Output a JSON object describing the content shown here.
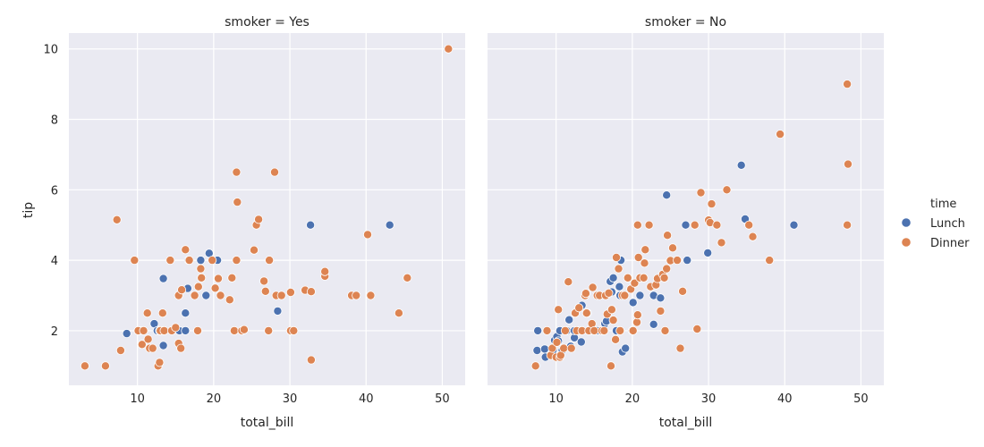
{
  "chart_data": {
    "type": "scatter",
    "xlabel": "total_bill",
    "ylabel": "tip",
    "xlim": [
      1,
      53
    ],
    "ylim": [
      0.45,
      10.45
    ],
    "xticks": [
      10,
      20,
      30,
      40,
      50
    ],
    "yticks": [
      2,
      4,
      6,
      8,
      10
    ],
    "grid": true,
    "legend": {
      "title": "time",
      "placement": "right",
      "entries": [
        {
          "name": "Lunch",
          "color": "#4c72b0"
        },
        {
          "name": "Dinner",
          "color": "#dd8452"
        }
      ]
    },
    "panels": [
      {
        "title": "smoker = Yes",
        "series": [
          {
            "name": "Lunch",
            "points": [
              [
                8.6,
                1.92
              ],
              [
                10.1,
                2.0
              ],
              [
                10.3,
                2.0
              ],
              [
                12.2,
                2.2
              ],
              [
                12.6,
                2.0
              ],
              [
                12.9,
                2.0
              ],
              [
                13.4,
                2.0
              ],
              [
                13.4,
                3.48
              ],
              [
                13.4,
                1.58
              ],
              [
                15.5,
                2.0
              ],
              [
                16.3,
                2.0
              ],
              [
                16.3,
                2.5
              ],
              [
                16.6,
                3.2
              ],
              [
                16.7,
                4.0
              ],
              [
                18.3,
                4.0
              ],
              [
                19.0,
                3.0
              ],
              [
                19.4,
                4.2
              ],
              [
                20.5,
                4.0
              ],
              [
                28.4,
                2.56
              ],
              [
                32.7,
                5.0
              ],
              [
                43.1,
                5.0
              ]
            ]
          },
          {
            "name": "Dinner",
            "points": [
              [
                3.1,
                1.0
              ],
              [
                5.8,
                1.0
              ],
              [
                7.3,
                5.15
              ],
              [
                7.8,
                1.44
              ],
              [
                9.6,
                4.0
              ],
              [
                10.1,
                2.0
              ],
              [
                10.6,
                1.61
              ],
              [
                10.8,
                2.0
              ],
              [
                11.3,
                2.5
              ],
              [
                11.4,
                1.76
              ],
              [
                11.6,
                1.5
              ],
              [
                12.0,
                1.5
              ],
              [
                12.7,
                1.0
              ],
              [
                12.9,
                1.1
              ],
              [
                13.0,
                2.0
              ],
              [
                13.3,
                2.5
              ],
              [
                13.5,
                2.0
              ],
              [
                14.3,
                4.0
              ],
              [
                14.5,
                2.0
              ],
              [
                15.0,
                2.09
              ],
              [
                15.4,
                1.64
              ],
              [
                15.4,
                3.0
              ],
              [
                15.7,
                1.5
              ],
              [
                15.8,
                3.16
              ],
              [
                16.3,
                4.3
              ],
              [
                16.8,
                4.0
              ],
              [
                17.5,
                3.0
              ],
              [
                17.9,
                2.0
              ],
              [
                18.0,
                3.25
              ],
              [
                18.3,
                3.76
              ],
              [
                18.4,
                3.5
              ],
              [
                19.8,
                4.0
              ],
              [
                20.2,
                3.21
              ],
              [
                20.6,
                3.48
              ],
              [
                20.9,
                3.0
              ],
              [
                22.1,
                2.88
              ],
              [
                22.4,
                3.5
              ],
              [
                22.7,
                2.0
              ],
              [
                23.0,
                4.0
              ],
              [
                23.0,
                6.5
              ],
              [
                23.1,
                5.65
              ],
              [
                23.7,
                2.0
              ],
              [
                24.0,
                2.03
              ],
              [
                25.3,
                4.29
              ],
              [
                25.6,
                5.0
              ],
              [
                25.9,
                5.16
              ],
              [
                26.6,
                3.41
              ],
              [
                26.8,
                3.12
              ],
              [
                27.2,
                2.0
              ],
              [
                27.3,
                4.0
              ],
              [
                28.0,
                6.5
              ],
              [
                28.2,
                3.0
              ],
              [
                28.9,
                3.0
              ],
              [
                30.1,
                2.0
              ],
              [
                30.1,
                3.09
              ],
              [
                30.5,
                2.0
              ],
              [
                32.0,
                3.15
              ],
              [
                32.8,
                3.11
              ],
              [
                32.8,
                1.17
              ],
              [
                34.6,
                3.55
              ],
              [
                34.6,
                3.68
              ],
              [
                38.1,
                3.0
              ],
              [
                38.7,
                3.0
              ],
              [
                40.2,
                4.73
              ],
              [
                40.6,
                3.0
              ],
              [
                44.3,
                2.5
              ],
              [
                45.4,
                3.5
              ],
              [
                50.8,
                10.0
              ]
            ]
          }
        ]
      },
      {
        "title": "smoker = No",
        "series": [
          {
            "name": "Lunch",
            "points": [
              [
                7.5,
                1.44
              ],
              [
                7.6,
                2.0
              ],
              [
                8.5,
                1.48
              ],
              [
                8.6,
                1.25
              ],
              [
                9.6,
                1.45
              ],
              [
                9.8,
                1.73
              ],
              [
                10.1,
                1.83
              ],
              [
                10.3,
                1.71
              ],
              [
                10.5,
                2.0
              ],
              [
                10.8,
                1.44
              ],
              [
                11.4,
                2.0
              ],
              [
                11.7,
                2.31
              ],
              [
                11.9,
                1.56
              ],
              [
                12.4,
                1.8
              ],
              [
                12.4,
                2.0
              ],
              [
                13.0,
                2.0
              ],
              [
                13.3,
                1.68
              ],
              [
                13.4,
                2.72
              ],
              [
                14.1,
                2.5
              ],
              [
                14.5,
                2.0
              ],
              [
                15.0,
                2.0
              ],
              [
                15.4,
                2.0
              ],
              [
                16.0,
                2.0
              ],
              [
                16.2,
                2.0
              ],
              [
                16.4,
                2.2
              ],
              [
                16.6,
                2.27
              ],
              [
                17.1,
                3.4
              ],
              [
                17.3,
                3.1
              ],
              [
                17.5,
                3.5
              ],
              [
                17.9,
                2.0
              ],
              [
                18.3,
                3.25
              ],
              [
                18.4,
                3.0
              ],
              [
                18.5,
                4.0
              ],
              [
                18.7,
                1.4
              ],
              [
                19.1,
                1.5
              ],
              [
                20.0,
                2.0
              ],
              [
                20.1,
                2.8
              ],
              [
                21.0,
                3.0
              ],
              [
                22.8,
                3.0
              ],
              [
                22.8,
                2.18
              ],
              [
                23.7,
                2.93
              ],
              [
                24.5,
                5.85
              ],
              [
                27.0,
                5.0
              ],
              [
                27.2,
                4.0
              ],
              [
                29.9,
                4.21
              ],
              [
                34.3,
                6.7
              ],
              [
                34.8,
                5.17
              ],
              [
                41.2,
                5.0
              ]
            ]
          },
          {
            "name": "Dinner",
            "points": [
              [
                7.3,
                1.0
              ],
              [
                8.8,
                2.0
              ],
              [
                9.3,
                1.3
              ],
              [
                9.5,
                1.5
              ],
              [
                10.0,
                1.25
              ],
              [
                10.1,
                1.67
              ],
              [
                10.3,
                2.6
              ],
              [
                10.5,
                1.25
              ],
              [
                10.6,
                1.3
              ],
              [
                11.0,
                1.5
              ],
              [
                11.2,
                2.0
              ],
              [
                11.6,
                3.39
              ],
              [
                12.0,
                1.5
              ],
              [
                12.5,
                2.5
              ],
              [
                12.7,
                2.0
              ],
              [
                13.0,
                2.65
              ],
              [
                13.4,
                2.0
              ],
              [
                13.8,
                3.0
              ],
              [
                13.9,
                3.06
              ],
              [
                14.0,
                2.5
              ],
              [
                14.3,
                2.0
              ],
              [
                14.7,
                2.2
              ],
              [
                14.8,
                3.23
              ],
              [
                15.0,
                2.0
              ],
              [
                15.4,
                3.0
              ],
              [
                15.7,
                3.0
              ],
              [
                16.0,
                2.0
              ],
              [
                16.3,
                2.0
              ],
              [
                16.5,
                3.0
              ],
              [
                16.7,
                2.47
              ],
              [
                16.9,
                3.07
              ],
              [
                17.2,
                1.0
              ],
              [
                17.3,
                2.6
              ],
              [
                17.5,
                2.3
              ],
              [
                17.8,
                1.75
              ],
              [
                17.9,
                4.08
              ],
              [
                18.2,
                3.76
              ],
              [
                18.4,
                2.0
              ],
              [
                18.7,
                3.0
              ],
              [
                19.0,
                3.0
              ],
              [
                19.4,
                3.5
              ],
              [
                19.8,
                3.18
              ],
              [
                20.1,
                2.0
              ],
              [
                20.3,
                3.35
              ],
              [
                20.6,
                2.24
              ],
              [
                20.7,
                2.45
              ],
              [
                20.7,
                5.0
              ],
              [
                20.8,
                4.08
              ],
              [
                21.0,
                3.5
              ],
              [
                21.5,
                3.5
              ],
              [
                21.6,
                3.92
              ],
              [
                21.7,
                4.3
              ],
              [
                22.2,
                5.0
              ],
              [
                22.4,
                3.25
              ],
              [
                23.1,
                3.3
              ],
              [
                23.3,
                3.48
              ],
              [
                23.7,
                2.56
              ],
              [
                24.0,
                3.6
              ],
              [
                24.2,
                3.5
              ],
              [
                24.3,
                2.0
              ],
              [
                24.5,
                3.76
              ],
              [
                24.6,
                4.71
              ],
              [
                25.0,
                3.99
              ],
              [
                25.3,
                4.35
              ],
              [
                25.9,
                4.0
              ],
              [
                26.3,
                1.5
              ],
              [
                26.6,
                3.12
              ],
              [
                28.2,
                5.0
              ],
              [
                28.5,
                2.05
              ],
              [
                29.0,
                5.92
              ],
              [
                30.0,
                5.14
              ],
              [
                30.2,
                5.07
              ],
              [
                30.4,
                5.6
              ],
              [
                31.1,
                5.0
              ],
              [
                31.7,
                4.5
              ],
              [
                32.4,
                6.0
              ],
              [
                35.3,
                5.0
              ],
              [
                35.8,
                4.67
              ],
              [
                38.0,
                4.0
              ],
              [
                39.4,
                7.58
              ],
              [
                48.2,
                9.0
              ],
              [
                48.2,
                5.0
              ],
              [
                48.3,
                6.73
              ]
            ]
          }
        ]
      }
    ]
  }
}
